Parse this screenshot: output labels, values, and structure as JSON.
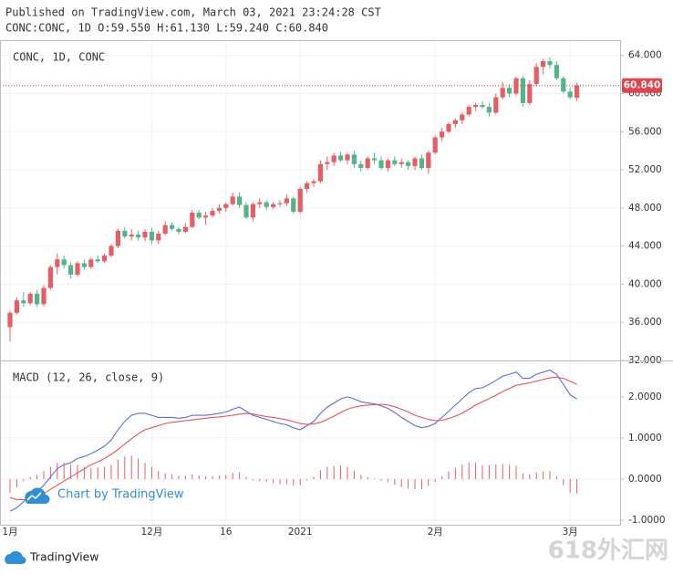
{
  "header": {
    "published": "Published on TradingView.com, March 03, 2021 23:24:28 CST",
    "symbol_info": "CONC:CONC, 1D O:59.550 H:61.130 L:59.240 C:60.840"
  },
  "branding": {
    "watermark": "Chart by TradingView",
    "logo": "TradingView",
    "site": "618外汇网"
  },
  "chart_data": [
    {
      "type": "candlestick",
      "legend": "CONC, 1D, CONC",
      "categories": [
        "1月",
        null,
        null,
        null,
        null,
        null,
        null,
        null,
        null,
        null,
        null,
        null,
        null,
        null,
        null,
        null,
        null,
        null,
        null,
        null,
        null,
        "12月",
        null,
        null,
        null,
        null,
        null,
        null,
        null,
        null,
        null,
        null,
        "16",
        null,
        null,
        null,
        null,
        null,
        null,
        null,
        null,
        null,
        null,
        "2021",
        null,
        null,
        null,
        null,
        null,
        null,
        null,
        null,
        null,
        null,
        null,
        null,
        null,
        null,
        null,
        null,
        null,
        null,
        null,
        "2月",
        null,
        null,
        null,
        null,
        null,
        null,
        null,
        null,
        null,
        null,
        null,
        null,
        null,
        null,
        null,
        null,
        null,
        null,
        null,
        "3月",
        null
      ],
      "open": [
        35.5,
        37.0,
        38.3,
        38.0,
        39.0,
        37.9,
        39.6,
        41.8,
        42.6,
        42.0,
        41.0,
        42.2,
        41.8,
        42.6,
        42.4,
        43.0,
        44.0,
        45.6,
        45.0,
        45.2,
        44.9,
        45.5,
        44.6,
        45.3,
        46.2,
        45.8,
        45.5,
        46.0,
        47.5,
        47.0,
        47.2,
        47.7,
        48.0,
        48.4,
        49.2,
        48.3,
        47.0,
        48.4,
        48.6,
        48.1,
        48.4,
        48.5,
        49.0,
        47.6,
        50.0,
        50.6,
        50.8,
        52.6,
        52.8,
        53.5,
        53.0,
        53.6,
        52.6,
        52.2,
        53.2,
        53.0,
        52.2,
        53.0,
        52.6,
        52.8,
        52.4,
        53.2,
        52.2,
        53.8,
        55.4,
        56.0,
        56.8,
        57.2,
        57.8,
        58.6,
        58.8,
        58.6,
        58.0,
        59.6,
        60.6,
        60.0,
        61.6,
        59.0,
        61.0,
        62.8,
        63.4,
        63.0,
        61.6,
        60.2,
        59.55
      ],
      "high": [
        37.2,
        38.6,
        39.2,
        39.2,
        39.4,
        39.9,
        42.0,
        43.2,
        43.0,
        42.3,
        42.4,
        42.6,
        42.8,
        43.0,
        43.2,
        44.2,
        45.8,
        46.0,
        45.8,
        45.6,
        45.8,
        45.9,
        45.6,
        46.6,
        46.5,
        46.0,
        46.4,
        47.8,
        47.8,
        47.6,
        48.0,
        48.4,
        48.6,
        49.6,
        49.6,
        48.6,
        48.6,
        49.0,
        48.8,
        48.6,
        48.8,
        49.4,
        49.2,
        50.2,
        50.8,
        51.0,
        53.0,
        53.4,
        53.8,
        53.9,
        53.8,
        54.0,
        53.0,
        53.4,
        53.8,
        53.4,
        53.2,
        53.4,
        53.2,
        53.0,
        53.4,
        53.6,
        54.0,
        55.6,
        56.4,
        57.0,
        57.4,
        58.0,
        58.8,
        59.0,
        59.2,
        59.0,
        60.0,
        61.2,
        61.0,
        61.8,
        61.8,
        61.4,
        63.2,
        63.6,
        63.8,
        63.4,
        61.8,
        60.6,
        61.13
      ],
      "low": [
        34.0,
        36.8,
        37.6,
        37.8,
        37.6,
        37.7,
        39.4,
        41.0,
        41.6,
        40.6,
        40.8,
        41.5,
        41.6,
        42.2,
        42.2,
        42.8,
        43.8,
        44.8,
        44.6,
        44.6,
        44.5,
        44.2,
        44.2,
        45.1,
        45.6,
        45.2,
        45.4,
        45.9,
        46.8,
        46.2,
        47.0,
        47.4,
        47.6,
        48.2,
        48.0,
        46.8,
        46.6,
        48.0,
        47.8,
        47.9,
        48.1,
        48.2,
        47.4,
        47.4,
        49.6,
        50.2,
        50.6,
        52.0,
        52.4,
        52.8,
        52.6,
        52.2,
        51.8,
        52.0,
        52.6,
        52.0,
        51.8,
        52.4,
        52.2,
        52.0,
        52.0,
        52.0,
        51.6,
        53.6,
        55.0,
        55.8,
        56.4,
        56.8,
        57.6,
        58.2,
        58.4,
        57.6,
        57.8,
        59.4,
        59.6,
        59.8,
        58.6,
        58.8,
        60.8,
        62.0,
        62.6,
        61.4,
        60.0,
        59.4,
        59.24
      ],
      "close": [
        37.0,
        38.3,
        38.0,
        39.0,
        37.9,
        39.6,
        41.8,
        42.6,
        42.0,
        41.0,
        42.2,
        41.8,
        42.6,
        42.4,
        43.0,
        44.0,
        45.6,
        45.0,
        45.2,
        44.9,
        45.5,
        44.6,
        45.3,
        46.2,
        45.8,
        45.5,
        46.0,
        47.5,
        47.0,
        47.2,
        47.7,
        48.0,
        48.4,
        49.2,
        48.3,
        47.0,
        48.4,
        48.6,
        48.1,
        48.4,
        48.5,
        49.0,
        47.6,
        50.0,
        50.6,
        50.8,
        52.6,
        52.8,
        53.5,
        53.0,
        53.6,
        52.6,
        52.2,
        53.2,
        53.0,
        52.2,
        53.0,
        52.6,
        52.8,
        52.4,
        53.2,
        52.2,
        53.8,
        55.4,
        56.0,
        56.8,
        57.2,
        57.8,
        58.6,
        58.8,
        58.6,
        58.0,
        59.6,
        60.6,
        60.0,
        61.6,
        59.0,
        61.0,
        62.8,
        63.4,
        63.0,
        61.6,
        60.2,
        59.6,
        60.84
      ],
      "up_color": "#e85d64",
      "down_color": "#52b58a",
      "ylim": [
        32,
        65.6
      ],
      "yticks": [
        {
          "value": 32,
          "label": "32.000"
        },
        {
          "value": 36,
          "label": "36.000"
        },
        {
          "value": 40,
          "label": "40.000"
        },
        {
          "value": 44,
          "label": "44.000"
        },
        {
          "value": 48,
          "label": "48.000"
        },
        {
          "value": 52,
          "label": "52.000"
        },
        {
          "value": 56,
          "label": "56.000"
        },
        {
          "value": 60,
          "label": "60.000"
        },
        {
          "value": 64,
          "label": "64.000"
        }
      ],
      "last_price": {
        "value": 60.84,
        "label": "60.840",
        "color": "#e0434b"
      },
      "grid": true
    },
    {
      "type": "macd",
      "title": "MACD (12, 26, close, 9)",
      "series": [
        {
          "style": "histogram",
          "color": "#e85d64",
          "values": [
            -0.33,
            -0.2,
            -0.05,
            0.05,
            0.1,
            0.2,
            0.3,
            0.4,
            0.4,
            0.35,
            0.35,
            0.3,
            0.27,
            0.28,
            0.3,
            0.35,
            0.48,
            0.55,
            0.57,
            0.5,
            0.4,
            0.3,
            0.2,
            0.15,
            0.12,
            0.08,
            0.08,
            0.11,
            0.09,
            0.07,
            0.07,
            0.09,
            0.1,
            0.15,
            0.17,
            0.05,
            -0.03,
            -0.05,
            -0.07,
            -0.1,
            -0.12,
            -0.12,
            -0.15,
            -0.15,
            -0.03,
            0.06,
            0.22,
            0.3,
            0.32,
            0.33,
            0.3,
            0.2,
            0.1,
            0.05,
            0.02,
            -0.04,
            -0.08,
            -0.14,
            -0.2,
            -0.23,
            -0.25,
            -0.25,
            -0.17,
            -0.07,
            0.07,
            0.18,
            0.27,
            0.35,
            0.4,
            0.4,
            0.34,
            0.34,
            0.36,
            0.37,
            0.35,
            0.32,
            0.14,
            0.11,
            0.17,
            0.18,
            0.19,
            0.07,
            -0.15,
            -0.33,
            -0.35
          ]
        },
        {
          "style": "line",
          "color": "#5b6bea",
          "values": [
            -0.78,
            -0.7,
            -0.55,
            -0.4,
            -0.3,
            -0.15,
            0.05,
            0.25,
            0.35,
            0.4,
            0.5,
            0.55,
            0.62,
            0.7,
            0.8,
            0.95,
            1.2,
            1.4,
            1.55,
            1.6,
            1.6,
            1.55,
            1.5,
            1.5,
            1.5,
            1.48,
            1.5,
            1.55,
            1.55,
            1.55,
            1.57,
            1.6,
            1.63,
            1.7,
            1.75,
            1.65,
            1.55,
            1.5,
            1.45,
            1.4,
            1.35,
            1.32,
            1.25,
            1.2,
            1.3,
            1.4,
            1.6,
            1.75,
            1.85,
            1.95,
            2.0,
            1.95,
            1.88,
            1.85,
            1.83,
            1.78,
            1.72,
            1.62,
            1.5,
            1.4,
            1.3,
            1.25,
            1.28,
            1.35,
            1.5,
            1.65,
            1.8,
            1.95,
            2.1,
            2.2,
            2.22,
            2.3,
            2.4,
            2.5,
            2.55,
            2.6,
            2.45,
            2.45,
            2.55,
            2.6,
            2.65,
            2.55,
            2.3,
            2.05,
            1.95
          ]
        },
        {
          "style": "line",
          "color": "#ee4f55",
          "values": [
            -0.45,
            -0.5,
            -0.5,
            -0.45,
            -0.4,
            -0.35,
            -0.25,
            -0.15,
            -0.05,
            0.05,
            0.15,
            0.25,
            0.35,
            0.42,
            0.5,
            0.6,
            0.72,
            0.85,
            0.98,
            1.1,
            1.2,
            1.25,
            1.3,
            1.35,
            1.38,
            1.4,
            1.42,
            1.44,
            1.46,
            1.48,
            1.5,
            1.51,
            1.53,
            1.55,
            1.58,
            1.6,
            1.58,
            1.55,
            1.52,
            1.5,
            1.47,
            1.44,
            1.4,
            1.35,
            1.33,
            1.34,
            1.38,
            1.45,
            1.53,
            1.62,
            1.7,
            1.75,
            1.78,
            1.8,
            1.81,
            1.82,
            1.8,
            1.76,
            1.7,
            1.63,
            1.55,
            1.5,
            1.45,
            1.42,
            1.43,
            1.47,
            1.53,
            1.6,
            1.7,
            1.8,
            1.88,
            1.96,
            2.04,
            2.13,
            2.2,
            2.28,
            2.31,
            2.34,
            2.38,
            2.42,
            2.46,
            2.48,
            2.45,
            2.38,
            2.3
          ]
        }
      ],
      "ylim": [
        -1.11,
        2.84
      ],
      "yticks": [
        {
          "value": -1,
          "label": "-1.0000"
        },
        {
          "value": 0,
          "label": "0.0000"
        },
        {
          "value": 1,
          "label": "1.0000"
        },
        {
          "value": 2,
          "label": "2.0000"
        }
      ],
      "grid": true
    }
  ]
}
